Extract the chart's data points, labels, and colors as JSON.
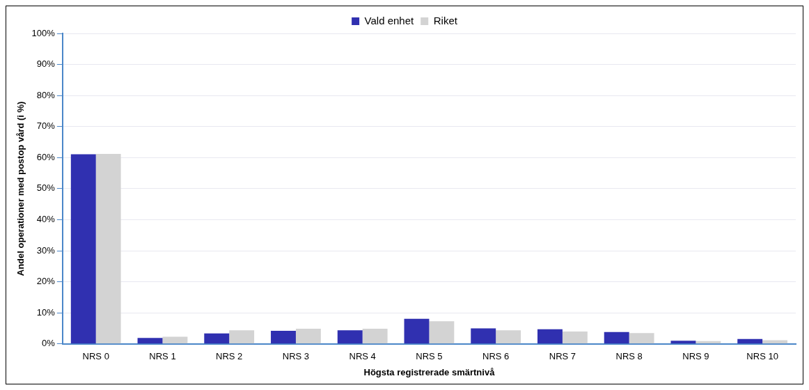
{
  "chart_data": {
    "type": "bar",
    "xlabel": "Högsta registrerade smärtnivå",
    "ylabel": "Andel operationer med postop vård (i %)",
    "categories": [
      "NRS 0",
      "NRS 1",
      "NRS 2",
      "NRS 3",
      "NRS 4",
      "NRS 5",
      "NRS 6",
      "NRS 7",
      "NRS 8",
      "NRS 9",
      "NRS 10"
    ],
    "series": [
      {
        "name": "Vald enhet",
        "color": "#3030b0",
        "values": [
          61.1,
          1.9,
          3.4,
          4.2,
          4.4,
          8.1,
          5.0,
          4.7,
          3.8,
          1.0,
          1.6
        ]
      },
      {
        "name": "Riket",
        "color": "#d3d3d3",
        "values": [
          61.2,
          2.3,
          4.4,
          4.9,
          4.9,
          7.3,
          4.4,
          4.0,
          3.5,
          0.9,
          1.2
        ]
      }
    ],
    "ylim": [
      0,
      100
    ],
    "yticks": [
      {
        "value": 0,
        "label": "0%"
      },
      {
        "value": 10,
        "label": "10%"
      },
      {
        "value": 20,
        "label": "20%"
      },
      {
        "value": 30,
        "label": "30%"
      },
      {
        "value": 40,
        "label": "40%"
      },
      {
        "value": 50,
        "label": "50%"
      },
      {
        "value": 60,
        "label": "60%"
      },
      {
        "value": 70,
        "label": "70%"
      },
      {
        "value": 80,
        "label": "80%"
      },
      {
        "value": 90,
        "label": "90%"
      },
      {
        "value": 100,
        "label": "100%"
      }
    ],
    "grid": "y",
    "legend": "top"
  }
}
